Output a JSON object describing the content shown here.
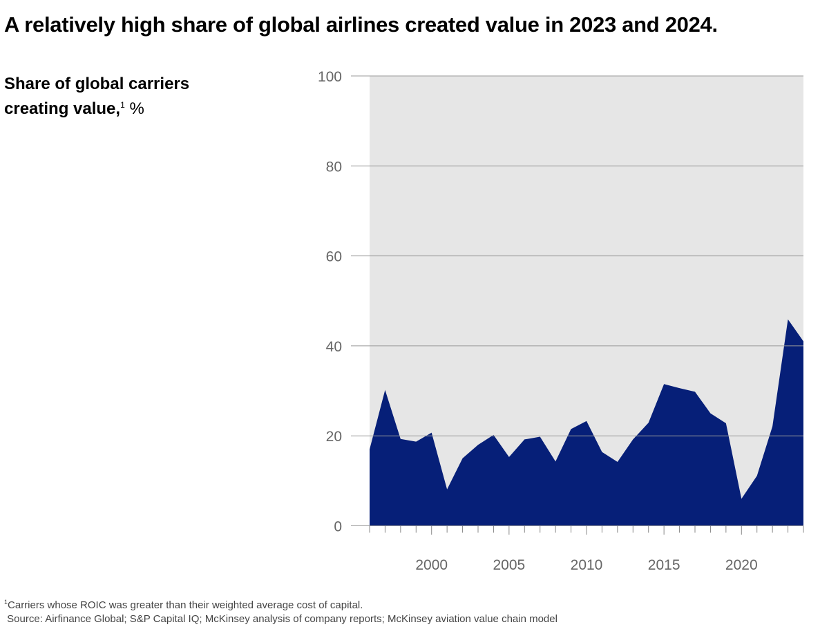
{
  "title": "A relatively high share of global airlines created value in 2023 and 2024.",
  "subtitle": {
    "line1": "Share of global carriers",
    "line2": "creating value,",
    "footnote_mark": "1",
    "unit": "%"
  },
  "footnote": {
    "mark": "1",
    "text": "Carriers whose ROIC was greater than their weighted average cost of capital.",
    "source": "Source: Airfinance Global; S&P Capital IQ; McKinsey analysis of company reports; McKinsey aviation value chain model"
  },
  "colors": {
    "area": "#061f78",
    "plot_bg": "#e6e6e6",
    "grid": "#999999"
  },
  "chart_data": {
    "type": "area",
    "xlabel": "",
    "ylabel": "Share of global carriers creating value, %",
    "xlim": [
      1996,
      2024
    ],
    "ylim": [
      0,
      100
    ],
    "yticks": [
      0,
      20,
      40,
      60,
      80,
      100
    ],
    "xticks": [
      2000,
      2005,
      2010,
      2015,
      2020
    ],
    "grid": true,
    "x": [
      1996,
      1997,
      1998,
      1999,
      2000,
      2001,
      2002,
      2003,
      2004,
      2005,
      2006,
      2007,
      2008,
      2009,
      2010,
      2011,
      2012,
      2013,
      2014,
      2015,
      2016,
      2017,
      2018,
      2019,
      2020,
      2021,
      2022,
      2023,
      2024
    ],
    "values": [
      17.0,
      30.2,
      19.3,
      18.7,
      20.7,
      8.1,
      15.0,
      18.0,
      20.2,
      15.3,
      19.2,
      19.8,
      14.3,
      21.5,
      23.3,
      16.4,
      14.2,
      19.2,
      22.9,
      31.5,
      30.6,
      29.8,
      25.0,
      22.8,
      6.0,
      11.1,
      22.1,
      45.9,
      41.0
    ]
  }
}
